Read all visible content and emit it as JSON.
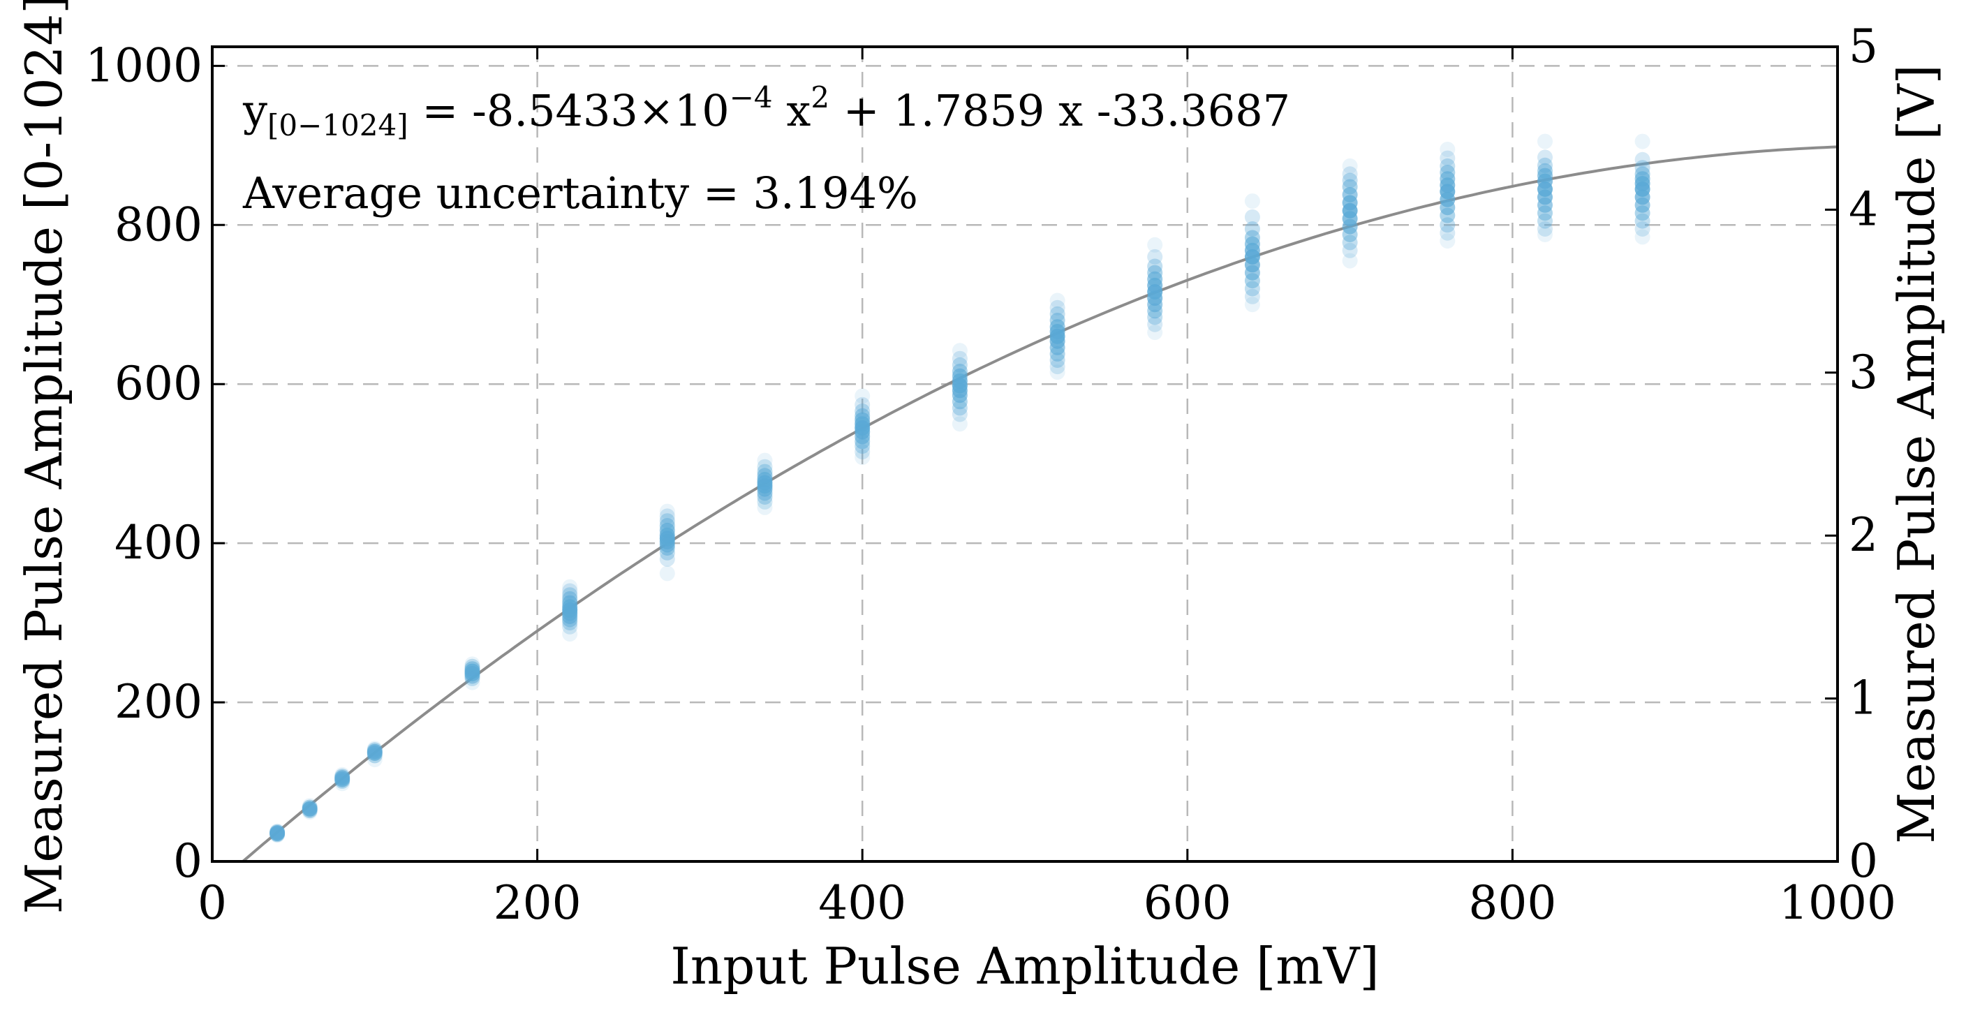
{
  "chart_data": {
    "type": "scatter",
    "xlabel": "Input Pulse Amplitude [mV]",
    "ylabel": "Measured Pulse Amplitude [0-1024]",
    "ylabel_right": "Measured Pulse Amplitude [V]",
    "xlim": [
      0,
      1000
    ],
    "ylim": [
      0,
      1024
    ],
    "ylim_right": [
      0,
      5
    ],
    "x_ticks": [
      "0",
      "200",
      "400",
      "600",
      "800",
      "1000"
    ],
    "y_ticks": [
      "0",
      "200",
      "400",
      "600",
      "800",
      "1000"
    ],
    "y_right_ticks": [
      "0",
      "1",
      "2",
      "3",
      "4",
      "5"
    ],
    "grid": true,
    "point_color": "#5aa9d6",
    "fit_color": "#8c8c8c",
    "annotations": {
      "fit_equation": {
        "y_symbol": "y",
        "y_subscript": "[0−1024]",
        "part1": " = -8.5433×10",
        "exp1": "−4",
        "part2": " x",
        "exp2": "2",
        "part3": " + 1.7859 x -33.3687"
      },
      "uncertainty": "Average uncertainty = 3.194%"
    },
    "fit": {
      "a": -0.00085433,
      "b": 1.7859,
      "c": -33.3687,
      "x_range": [
        18.9,
        1000
      ]
    },
    "series": [
      {
        "x": 40,
        "y": [
          33,
          34,
          35,
          36,
          37,
          38
        ]
      },
      {
        "x": 60,
        "y": [
          62,
          64,
          66,
          68,
          70
        ]
      },
      {
        "x": 80,
        "y": [
          98,
          101,
          103,
          105,
          107,
          109
        ]
      },
      {
        "x": 100,
        "y": [
          128,
          133,
          136,
          138,
          140,
          142
        ]
      },
      {
        "x": 160,
        "y": [
          225,
          230,
          233,
          236,
          239,
          242,
          245,
          248
        ]
      },
      {
        "x": 220,
        "y": [
          286,
          295,
          300,
          304,
          308,
          312,
          316,
          320,
          325,
          330,
          335,
          340,
          345
        ]
      },
      {
        "x": 280,
        "y": [
          362,
          380,
          388,
          394,
          398,
          402,
          406,
          410,
          416,
          422,
          428,
          434,
          440
        ]
      },
      {
        "x": 340,
        "y": [
          445,
          452,
          458,
          463,
          468,
          472,
          476,
          480,
          485,
          490,
          496,
          504
        ]
      },
      {
        "x": 400,
        "y": [
          508,
          515,
          522,
          528,
          534,
          540,
          545,
          550,
          555,
          560,
          566,
          574,
          585
        ]
      },
      {
        "x": 460,
        "y": [
          550,
          562,
          570,
          578,
          586,
          592,
          598,
          604,
          610,
          616,
          624,
          632,
          642
        ]
      },
      {
        "x": 520,
        "y": [
          615,
          622,
          630,
          638,
          646,
          654,
          660,
          666,
          672,
          680,
          688,
          696,
          705
        ]
      },
      {
        "x": 580,
        "y": [
          665,
          675,
          684,
          692,
          700,
          708,
          716,
          724,
          732,
          740,
          748,
          760,
          775
        ]
      },
      {
        "x": 640,
        "y": [
          700,
          710,
          720,
          730,
          740,
          750,
          760,
          768,
          776,
          784,
          795,
          810,
          830
        ]
      },
      {
        "x": 700,
        "y": [
          755,
          768,
          778,
          788,
          798,
          808,
          818,
          828,
          838,
          848,
          856,
          864,
          874
        ]
      },
      {
        "x": 760,
        "y": [
          780,
          790,
          800,
          812,
          822,
          832,
          842,
          850,
          858,
          866,
          874,
          884,
          895
        ]
      },
      {
        "x": 820,
        "y": [
          788,
          795,
          805,
          815,
          825,
          835,
          845,
          855,
          862,
          868,
          875,
          885,
          905
        ]
      },
      {
        "x": 880,
        "y": [
          785,
          795,
          805,
          815,
          825,
          835,
          845,
          852,
          858,
          864,
          872,
          882,
          905
        ]
      }
    ]
  }
}
